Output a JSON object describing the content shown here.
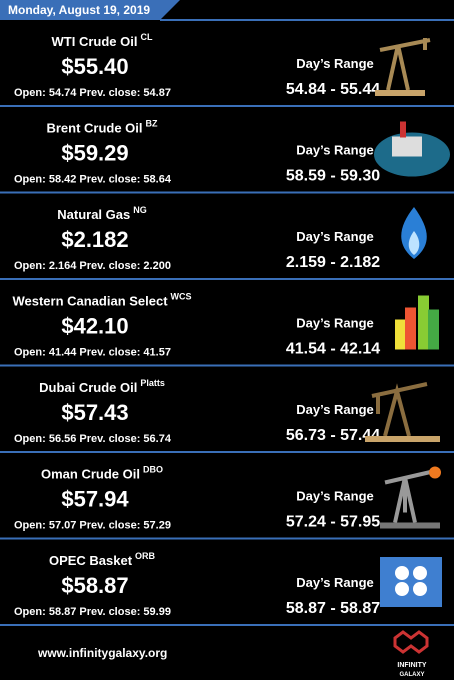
{
  "header": {
    "date": "Monday, August 19, 2019"
  },
  "items": [
    {
      "name": "WTI Crude Oil",
      "ticker": "CL",
      "price": "$55.40",
      "details": "Open: 54.74 Prev. close: 54.87",
      "range_label": "Day’s Range",
      "range": "54.84 - 55.44"
    },
    {
      "name": "Brent Crude Oil",
      "ticker": "BZ",
      "price": "$59.29",
      "details": "Open: 58.42 Prev. close: 58.64",
      "range_label": "Day’s Range",
      "range": "58.59 - 59.30"
    },
    {
      "name": "Natural Gas",
      "ticker": "NG",
      "price": "$2.182",
      "details": "Open: 2.164 Prev. close: 2.200",
      "range_label": "Day’s Range",
      "range": "2.159 - 2.182"
    },
    {
      "name": "Western Canadian Select",
      "ticker": "WCS",
      "price": "$42.10",
      "details": "Open: 41.44 Prev. close: 41.57",
      "range_label": "Day’s Range",
      "range": "41.54 - 42.14"
    },
    {
      "name": "Dubai Crude Oil",
      "ticker": "Platts",
      "price": "$57.43",
      "details": "Open: 56.56 Prev. close: 56.74",
      "range_label": "Day’s Range",
      "range": "56.73 - 57.44"
    },
    {
      "name": "Oman Crude Oil",
      "ticker": "DBO",
      "price": "$57.94",
      "details": "Open: 57.07 Prev. close: 57.29",
      "range_label": "Day’s Range",
      "range": "57.24 - 57.95"
    },
    {
      "name": "OPEC Basket",
      "ticker": "ORB",
      "price": "$58.87",
      "details": "Open: 58.87 Prev. close: 59.99",
      "range_label": "Day’s Range",
      "range": "58.87 - 58.87"
    }
  ],
  "footer": {
    "url": "www.infinitygalaxy.org",
    "logo": "INFINITY",
    "logo_sub": "GALAXY"
  }
}
